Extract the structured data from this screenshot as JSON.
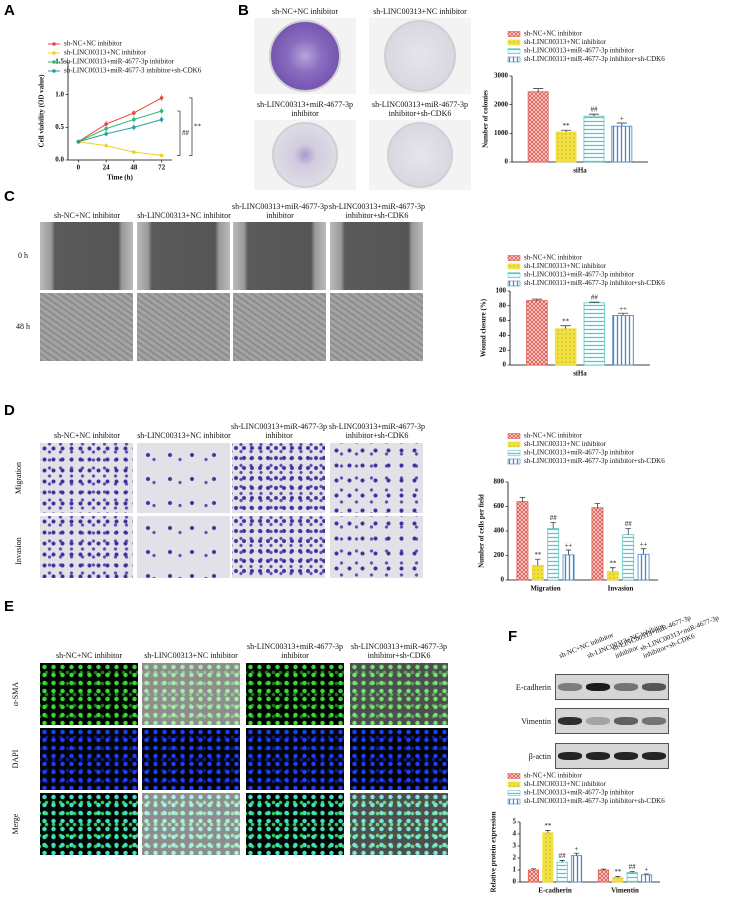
{
  "panels": [
    "A",
    "B",
    "C",
    "D",
    "E",
    "F"
  ],
  "images": {
    "B": {
      "labels": [
        "sh-NC+NC inhibitor",
        "sh-LINC00313+NC inhibitor",
        "sh-LINC00313+miR-4677-3p inhibitor",
        "sh-LINC00313+miR-4677-3p inhibitor+sh-CDK6"
      ]
    },
    "C": {
      "columns": [
        "sh-NC+NC inhibitor",
        "sh-LINC00313+NC inhibitor",
        "sh-LINC00313+miR-4677-3p inhibitor",
        "sh-LINC00313+miR-4677-3p inhibitor+sh-CDK6"
      ],
      "rows": [
        "0 h",
        "48 h"
      ]
    },
    "D": {
      "columns": [
        "sh-NC+NC inhibitor",
        "sh-LINC00313+NC inhibitor",
        "sh-LINC00313+miR-4677-3p inhibitor",
        "sh-LINC00313+miR-4677-3p inhibitor+sh-CDK6"
      ],
      "rows": [
        "Migration",
        "Invasion"
      ]
    },
    "E": {
      "columns": [
        "sh-NC+NC inhibitor",
        "sh-LINC00313+NC inhibitor",
        "sh-LINC00313+miR-4677-3p inhibitor",
        "sh-LINC00313+miR-4677-3p inhibitor+sh-CDK6"
      ],
      "rows": [
        "α-SMA",
        "DAPI",
        "Merge"
      ]
    },
    "F": {
      "columns": [
        "sh-NC+NC inhibitor",
        "sh-LINC00313+NC inhibitor",
        "sh-LINC00313+miR-4677-3p inhibitor",
        "sh-LINC00313+miR-4677-3p inhibitor+sh-CDK6"
      ],
      "rows": [
        "E-cadherin",
        "Vimentin",
        "β-actin"
      ]
    }
  },
  "chart_data": [
    {
      "type": "line",
      "x": [
        0,
        24,
        48,
        72
      ],
      "xlim": [
        -9,
        81
      ],
      "xticks": [
        0,
        24,
        48,
        72
      ],
      "xlabel": "Time (h)",
      "ylabel": "Cell viability (OD value)",
      "ylim": [
        0,
        1.5
      ],
      "yticks": [
        {
          "value": 0,
          "label": "0.0"
        },
        {
          "value": 0.5,
          "label": "0.5"
        },
        {
          "value": 1,
          "label": "1.0"
        },
        {
          "value": 1.5,
          "label": "1.5"
        }
      ],
      "annotations": [
        "**",
        "##"
      ],
      "series": [
        {
          "name": "sh-NC+NC inhibitor",
          "color": "#e8453c",
          "values": [
            0.28,
            0.55,
            0.72,
            0.95
          ],
          "errors": [
            0.03,
            0.05,
            0.04,
            0.05
          ]
        },
        {
          "name": "sh-LINC00313+NC inhibitor",
          "color": "#f0d020",
          "values": [
            0.28,
            0.22,
            0.12,
            0.07
          ],
          "errors": [
            0.03,
            0.03,
            0.03,
            0.02
          ]
        },
        {
          "name": "sh-LINC00313+miR-4677-3p inhibitor",
          "color": "#2eb872",
          "values": [
            0.28,
            0.48,
            0.62,
            0.75
          ],
          "errors": [
            0.03,
            0.05,
            0.05,
            0.05
          ]
        },
        {
          "name": "sh-LINC00313+miR-4677-3 inhibitor+sh-CDK6",
          "color": "#2a9d9d",
          "values": [
            0.28,
            0.4,
            0.5,
            0.62
          ],
          "errors": [
            0.03,
            0.04,
            0.05,
            0.05
          ]
        }
      ]
    },
    {
      "type": "bar",
      "categories": [
        "siHa"
      ],
      "ylabel": "Number of colonies",
      "ylim": [
        0,
        3000
      ],
      "yticks": [
        0,
        1000,
        2000,
        3000
      ],
      "series": [
        {
          "name": "sh-NC+NC inhibitor",
          "color": "#e05a52",
          "values": [
            2450
          ],
          "errors": [
            110
          ]
        },
        {
          "name": "sh-LINC00313+NC inhibitor",
          "color": "#f2e03c",
          "values": [
            1050
          ],
          "errors": [
            60
          ],
          "annotations": [
            "**"
          ]
        },
        {
          "name": "sh-LINC00313+miR-4677-3p inhibitor",
          "color": "#5ec8c4",
          "values": [
            1600
          ],
          "errors": [
            70
          ],
          "annotations": [
            "##"
          ]
        },
        {
          "name": "sh-LINC00313+miR-4677-3p inhibitor+sh-CDK6",
          "color": "#4a86c8",
          "values": [
            1250
          ],
          "errors": [
            110
          ],
          "annotations": [
            "+"
          ]
        }
      ]
    },
    {
      "type": "bar",
      "categories": [
        "siHa"
      ],
      "ylabel": "Wound closure (%)",
      "ylim": [
        0,
        100
      ],
      "yticks": [
        0,
        20,
        40,
        60,
        80,
        100
      ],
      "series": [
        {
          "name": "sh-NC+NC inhibitor",
          "color": "#e05a52",
          "values": [
            87
          ],
          "errors": [
            2
          ]
        },
        {
          "name": "sh-LINC00313+NC inhibitor",
          "color": "#f2e03c",
          "values": [
            49
          ],
          "errors": [
            4
          ],
          "annotations": [
            "**"
          ]
        },
        {
          "name": "sh-LINC00313+miR-4677-3p inhibitor",
          "color": "#5ec8c4",
          "values": [
            84
          ],
          "errors": [
            1
          ],
          "annotations": [
            "##"
          ]
        },
        {
          "name": "sh-LINC00313+miR-4677-3p inhibitor+sh-CDK6",
          "color": "#4a86c8",
          "values": [
            67
          ],
          "errors": [
            3
          ],
          "annotations": [
            "++"
          ]
        }
      ]
    },
    {
      "type": "bar",
      "categories": [
        "Migration",
        "Invasion"
      ],
      "ylabel": "Number of cells per field",
      "ylim": [
        0,
        800
      ],
      "yticks": [
        0,
        200,
        400,
        600,
        800
      ],
      "series": [
        {
          "name": "sh-NC+NC inhibitor",
          "color": "#e05a52",
          "values": [
            640,
            590
          ],
          "errors": [
            35,
            35
          ]
        },
        {
          "name": "sh-LINC00313+NC inhibitor",
          "color": "#f2e03c",
          "values": [
            120,
            70
          ],
          "errors": [
            50,
            30
          ],
          "annotations": [
            "**",
            "**"
          ]
        },
        {
          "name": "sh-LINC00313+miR-4677-3p inhibitor",
          "color": "#5ec8c4",
          "values": [
            420,
            370
          ],
          "errors": [
            50,
            50
          ],
          "annotations": [
            "##",
            "##"
          ]
        },
        {
          "name": "sh-LINC00313+miR-4677-3p inhibitor+sh-CDK6",
          "color": "#4a86c8",
          "values": [
            205,
            210
          ],
          "errors": [
            40,
            45
          ],
          "annotations": [
            "++",
            "++"
          ]
        }
      ]
    },
    {
      "type": "bar",
      "categories": [
        "E-cadherin",
        "Vimentin"
      ],
      "ylabel": "Relative protein expression",
      "ylim": [
        0,
        5
      ],
      "yticks": [
        0,
        1,
        2,
        3,
        4,
        5
      ],
      "series": [
        {
          "name": "sh-NC+NC inhibitor",
          "color": "#e05a52",
          "values": [
            1,
            1
          ],
          "errors": [
            0.1,
            0.08
          ]
        },
        {
          "name": "sh-LINC00313+NC inhibitor",
          "color": "#f2e03c",
          "values": [
            4.1,
            0.38
          ],
          "errors": [
            0.2,
            0.08
          ],
          "annotations": [
            "**",
            "**"
          ]
        },
        {
          "name": "sh-LINC00313+miR-4677-3p inhibitor",
          "color": "#5ec8c4",
          "values": [
            1.65,
            0.8
          ],
          "errors": [
            0.15,
            0.08
          ],
          "annotations": [
            "##",
            "##"
          ]
        },
        {
          "name": "sh-LINC00313+miR-4677-3p inhibitor+sh-CDK6",
          "color": "#4a86c8",
          "values": [
            2.2,
            0.6
          ],
          "errors": [
            0.2,
            0.07
          ],
          "annotations": [
            "+",
            "+"
          ]
        }
      ]
    }
  ]
}
